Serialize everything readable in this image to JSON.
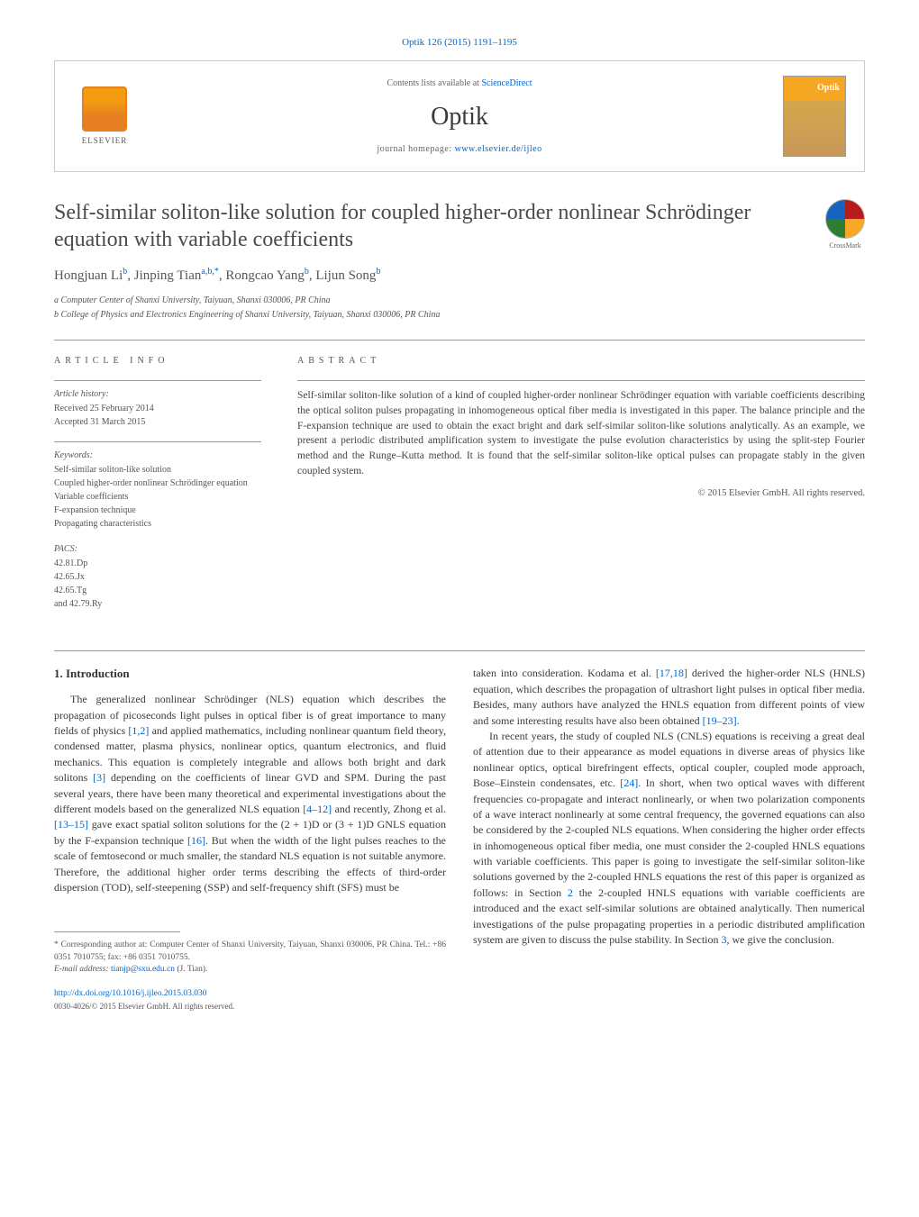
{
  "colors": {
    "link": "#0066cc",
    "text": "#3a3a3a",
    "muted": "#555555",
    "border": "#cccccc",
    "elsevier_orange": "#e67e22",
    "cover_bg": "#f5a623"
  },
  "header": {
    "citation": "Optik 126 (2015) 1191–1195",
    "contents_prefix": "Contents lists available at ",
    "contents_link": "ScienceDirect",
    "journal_name": "Optik",
    "homepage_prefix": "journal homepage: ",
    "homepage_url": "www.elsevier.de/ijleo",
    "elsevier_label": "ELSEVIER",
    "crossmark_label": "CrossMark"
  },
  "article": {
    "title": "Self-similar soliton-like solution for coupled higher-order nonlinear Schrödinger equation with variable coefficients",
    "authors_html": "Hongjuan Li<sup>b</sup>, Jinping Tian<sup>a,b,*</sup>, Rongcao Yang<sup>b</sup>, Lijun Song<sup>b</sup>",
    "affiliations": [
      "a Computer Center of Shanxi University, Taiyuan, Shanxi 030006, PR China",
      "b College of Physics and Electronics Engineering of Shanxi University, Taiyuan, Shanxi 030006, PR China"
    ]
  },
  "info": {
    "section_label": "ARTICLE INFO",
    "history_title": "Article history:",
    "history": [
      "Received 25 February 2014",
      "Accepted 31 March 2015"
    ],
    "keywords_title": "Keywords:",
    "keywords": [
      "Self-similar soliton-like solution",
      "Coupled higher-order nonlinear Schrödinger equation",
      "Variable coefficients",
      "F-expansion technique",
      "Propagating characteristics"
    ],
    "pacs_title": "PACS:",
    "pacs": [
      "42.81.Dp",
      "42.65.Jx",
      "42.65.Tg",
      "and 42.79.Ry"
    ]
  },
  "abstract": {
    "section_label": "ABSTRACT",
    "text": "Self-similar soliton-like solution of a kind of coupled higher-order nonlinear Schrödinger equation with variable coefficients describing the optical soliton pulses propagating in inhomogeneous optical fiber media is investigated in this paper. The balance principle and the F-expansion technique are used to obtain the exact bright and dark self-similar soliton-like solutions analytically. As an example, we present a periodic distributed amplification system to investigate the pulse evolution characteristics by using the split-step Fourier method and the Runge–Kutta method. It is found that the self-similar soliton-like optical pulses can propagate stably in the given coupled system.",
    "copyright": "© 2015 Elsevier GmbH. All rights reserved."
  },
  "body": {
    "intro_heading": "1. Introduction",
    "col1_p1": "The generalized nonlinear Schrödinger (NLS) equation which describes the propagation of picoseconds light pulses in optical fiber is of great importance to many fields of physics [1,2] and applied mathematics, including nonlinear quantum field theory, condensed matter, plasma physics, nonlinear optics, quantum electronics, and fluid mechanics. This equation is completely integrable and allows both bright and dark solitons [3] depending on the coefficients of linear GVD and SPM. During the past several years, there have been many theoretical and experimental investigations about the different models based on the generalized NLS equation [4–12] and recently, Zhong et al. [13–15] gave exact spatial soliton solutions for the (2 + 1)D or (3 + 1)D GNLS equation by the F-expansion technique [16]. But when the width of the light pulses reaches to the scale of femtosecond or much smaller, the standard NLS equation is not suitable anymore. Therefore, the additional higher order terms describing the effects of third-order dispersion (TOD), self-steepening (SSP) and self-frequency shift (SFS) must be",
    "col2_p1": "taken into consideration. Kodama et al. [17,18] derived the higher-order NLS (HNLS) equation, which describes the propagation of ultrashort light pulses in optical fiber media. Besides, many authors have analyzed the HNLS equation from different points of view and some interesting results have also been obtained [19–23].",
    "col2_p2": "In recent years, the study of coupled NLS (CNLS) equations is receiving a great deal of attention due to their appearance as model equations in diverse areas of physics like nonlinear optics, optical birefringent effects, optical coupler, coupled mode approach, Bose–Einstein condensates, etc. [24]. In short, when two optical waves with different frequencies co-propagate and interact nonlinearly, or when two polarization components of a wave interact nonlinearly at some central frequency, the governed equations can also be considered by the 2-coupled NLS equations. When considering the higher order effects in inhomogeneous optical fiber media, one must consider the 2-coupled HNLS equations with variable coefficients. This paper is going to investigate the self-similar soliton-like solutions governed by the 2-coupled HNLS equations the rest of this paper is organized as follows: in Section 2 the 2-coupled HNLS equations with variable coefficients are introduced and the exact self-similar solutions are obtained analytically. Then numerical investigations of the pulse propagating properties in a periodic distributed amplification system are given to discuss the pulse stability. In Section 3, we give the conclusion."
  },
  "footnote": {
    "corresponding": "* Corresponding author at: Computer Center of Shanxi University, Taiyuan, Shanxi 030006, PR China. Tel.: +86 0351 7010755; fax: +86 0351 7010755.",
    "email_label": "E-mail address: ",
    "email": "tianjp@sxu.edu.cn",
    "email_suffix": " (J. Tian)."
  },
  "doi": {
    "url": "http://dx.doi.org/10.1016/j.ijleo.2015.03.030",
    "issn_line": "0030-4026/© 2015 Elsevier GmbH. All rights reserved."
  }
}
